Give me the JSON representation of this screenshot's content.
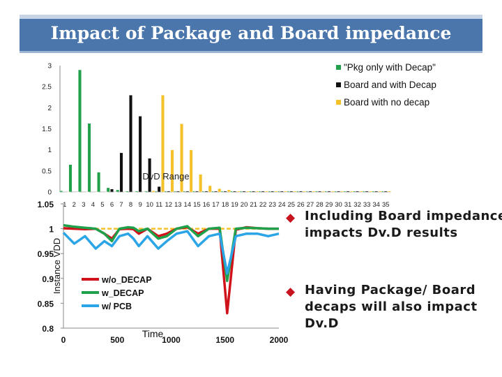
{
  "slide": {
    "title": "Impact of Package and Board impedance",
    "bullets": [
      "Including Board impedance impacts Dv.D results",
      "Having Package/ Board decaps will also impact Dv.D"
    ]
  },
  "chart_data": [
    {
      "type": "bar",
      "title": "",
      "annotation": "DvD Range",
      "ylim": [
        0,
        3
      ],
      "yticks": [
        "0",
        "0.5",
        "1",
        "1.5",
        "2",
        "2.5",
        "3"
      ],
      "categories": [
        "1",
        "2",
        "3",
        "4",
        "5",
        "6",
        "7",
        "8",
        "9",
        "10",
        "11",
        "12",
        "13",
        "14",
        "15",
        "16",
        "17",
        "18",
        "19",
        "20",
        "21",
        "22",
        "23",
        "24",
        "25",
        "26",
        "27",
        "28",
        "29",
        "30",
        "31",
        "32",
        "33",
        "34",
        "35"
      ],
      "legend_position": "top-right",
      "series": [
        {
          "name": "\"Pkg only with Decap\"",
          "color": "#22a04b",
          "values": [
            0.03,
            0.65,
            2.9,
            1.63,
            0.47,
            0.1,
            0.05,
            0.02,
            0.02,
            0.02,
            0.02,
            0.02,
            0.02,
            0.02,
            0.02,
            0.02,
            0.02,
            0.02,
            0.02,
            0.02,
            0.02,
            0.02,
            0.02,
            0.02,
            0.02,
            0.02,
            0.02,
            0.02,
            0.02,
            0.02,
            0.02,
            0.02,
            0.02,
            0.02,
            0.02
          ]
        },
        {
          "name": "Board and with Decap",
          "color": "#111111",
          "values": [
            0,
            0,
            0,
            0,
            0,
            0.07,
            0.93,
            2.3,
            1.8,
            0.8,
            0.13,
            0.02,
            0.02,
            0.02,
            0.02,
            0.02,
            0.02,
            0.02,
            0.02,
            0.02,
            0.02,
            0.02,
            0.02,
            0.02,
            0.02,
            0.02,
            0.02,
            0.02,
            0.02,
            0.02,
            0.02,
            0.02,
            0.02,
            0.02,
            0.02
          ]
        },
        {
          "name": "Board with no decap",
          "color": "#f5c12a",
          "values": [
            0,
            0,
            0,
            0,
            0,
            0,
            0,
            0,
            0,
            0.03,
            2.3,
            1.0,
            1.62,
            1.0,
            0.42,
            0.15,
            0.08,
            0.05,
            0.02,
            0.02,
            0.02,
            0.02,
            0.02,
            0.02,
            0.02,
            0.02,
            0.02,
            0.02,
            0.02,
            0.02,
            0.02,
            0.02,
            0.02,
            0.02,
            0.02
          ]
        }
      ]
    },
    {
      "type": "line",
      "xlabel": "Time",
      "ylabel": "Instance VDD",
      "xlim": [
        0,
        2000
      ],
      "ylim": [
        0.8,
        1.05
      ],
      "xticks": [
        "0",
        "500",
        "1000",
        "1500",
        "2000"
      ],
      "yticks": [
        "0.8",
        "0.85",
        "0.9",
        "0.95",
        "1",
        "1.05"
      ],
      "legend_position": "center-left",
      "series": [
        {
          "name": "w/o_DECAP",
          "color": "#d0131b",
          "x": [
            0,
            100,
            200,
            300,
            380,
            450,
            520,
            600,
            650,
            700,
            780,
            880,
            960,
            1050,
            1150,
            1250,
            1350,
            1450,
            1520,
            1600,
            1700,
            1800,
            1900,
            2000
          ],
          "y": [
            1.001,
            1.0,
            0.999,
            1.0,
            0.99,
            0.98,
            0.999,
            1.0,
            0.999,
            0.99,
            1.0,
            0.985,
            0.99,
            1.0,
            1.003,
            0.99,
            1.0,
            1.0,
            0.83,
            0.998,
            1.003,
            1.001,
            1.0,
            1.0
          ]
        },
        {
          "name": "w_DECAP",
          "color": "#1fa04a",
          "x": [
            0,
            100,
            200,
            300,
            380,
            450,
            520,
            600,
            650,
            700,
            780,
            880,
            960,
            1050,
            1150,
            1250,
            1350,
            1450,
            1520,
            1600,
            1700,
            1800,
            1900,
            2000
          ],
          "y": [
            1.007,
            1.004,
            1.002,
            1.0,
            0.99,
            0.975,
            1.0,
            1.003,
            1.002,
            0.995,
            1.0,
            0.98,
            0.985,
            1.0,
            1.005,
            0.985,
            1.0,
            1.002,
            0.895,
            1.0,
            1.002,
            1.001,
            1.0,
            1.0
          ]
        },
        {
          "name": "w/ PCB",
          "color": "#2ba5e6",
          "x": [
            0,
            100,
            200,
            300,
            380,
            450,
            520,
            600,
            650,
            700,
            780,
            880,
            960,
            1050,
            1150,
            1250,
            1350,
            1450,
            1520,
            1600,
            1700,
            1800,
            1900,
            2000
          ],
          "y": [
            0.992,
            0.97,
            0.985,
            0.96,
            0.975,
            0.965,
            0.985,
            0.99,
            0.98,
            0.965,
            0.985,
            0.96,
            0.975,
            0.99,
            0.995,
            0.965,
            0.985,
            0.99,
            0.91,
            0.985,
            0.99,
            0.99,
            0.985,
            0.99
          ]
        }
      ],
      "reference_line": {
        "y": 1.0,
        "color": "#f5c12a",
        "style": "dashed"
      }
    }
  ]
}
